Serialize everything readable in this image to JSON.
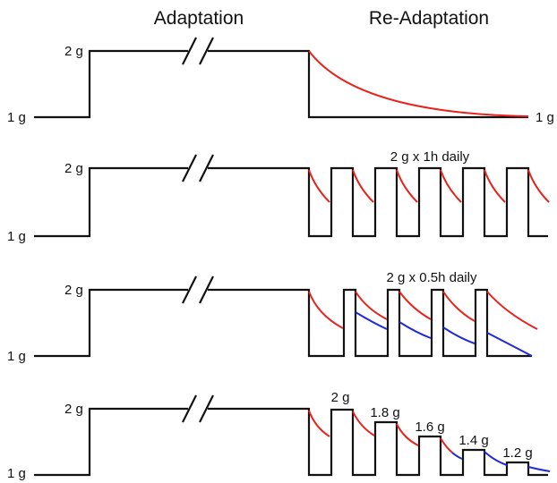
{
  "headers": {
    "adaptation": "Adaptation",
    "readaptation": "Re-Adaptation"
  },
  "colors": {
    "line": "#111111",
    "red_curve": "#e8231b",
    "blue_curve": "#1f2ad6"
  },
  "panels": [
    {
      "high_label": "2 g",
      "low_label": "1 g",
      "end_label": "1 g",
      "protocol_label": "",
      "pulse_labels": []
    },
    {
      "high_label": "2 g",
      "low_label": "1 g",
      "end_label": "",
      "protocol_label": "2 g x 1h daily",
      "pulse_labels": []
    },
    {
      "high_label": "2 g",
      "low_label": "1 g",
      "end_label": "",
      "protocol_label": "2 g x 0.5h daily",
      "pulse_labels": []
    },
    {
      "high_label": "2 g",
      "low_label": "1 g",
      "end_label": "",
      "protocol_label": "",
      "pulse_labels": [
        "2 g",
        "1.8 g",
        "1.6 g",
        "1.4 g",
        "1.2 g"
      ]
    }
  ]
}
